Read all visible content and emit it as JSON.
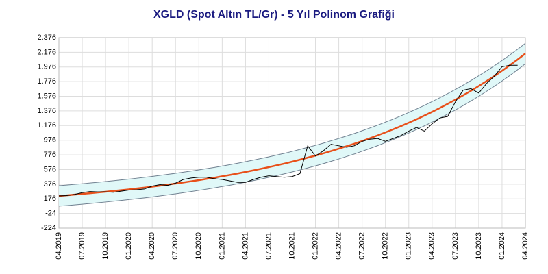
{
  "chart_data": {
    "type": "line",
    "title": "XGLD (Spot Altın TL/Gr) - 5 Yıl Polinom Grafiği",
    "x": [
      "2019-04",
      "2019-05",
      "2019-06",
      "2019-07",
      "2019-08",
      "2019-09",
      "2019-10",
      "2019-11",
      "2019-12",
      "2020-01",
      "2020-02",
      "2020-03",
      "2020-04",
      "2020-05",
      "2020-06",
      "2020-07",
      "2020-08",
      "2020-09",
      "2020-10",
      "2020-11",
      "2020-12",
      "2021-01",
      "2021-02",
      "2021-03",
      "2021-04",
      "2021-05",
      "2021-06",
      "2021-07",
      "2021-08",
      "2021-09",
      "2021-10",
      "2021-11",
      "2021-12",
      "2022-01",
      "2022-02",
      "2022-03",
      "2022-04",
      "2022-05",
      "2022-06",
      "2022-07",
      "2022-08",
      "2022-09",
      "2022-10",
      "2022-11",
      "2022-12",
      "2023-01",
      "2023-02",
      "2023-03",
      "2023-04",
      "2023-05",
      "2023-06",
      "2023-07",
      "2023-08",
      "2023-09",
      "2023-10",
      "2023-11",
      "2023-12",
      "2024-01",
      "2024-02",
      "2024-03",
      "2024-04"
    ],
    "series": [
      {
        "color": "#000000",
        "values": [
          215,
          220,
          235,
          260,
          275,
          270,
          270,
          265,
          280,
          295,
          300,
          310,
          350,
          370,
          360,
          390,
          440,
          460,
          470,
          470,
          450,
          440,
          420,
          400,
          400,
          440,
          470,
          490,
          480,
          470,
          480,
          520,
          900,
          760,
          830,
          920,
          900,
          880,
          900,
          960,
          990,
          1000,
          960,
          1000,
          1040,
          1100,
          1150,
          1100,
          1200,
          1280,
          1300,
          1500,
          1660,
          1680,
          1620,
          1750,
          1850,
          1980,
          2000,
          2000,
          null
        ]
      },
      {
        "color": "#e8501a",
        "values": [
          216,
          224,
          233,
          242,
          252,
          262,
          272,
          283,
          294,
          305,
          317,
          329,
          342,
          356,
          370,
          384,
          399,
          415,
          431,
          448,
          465,
          484,
          502,
          522,
          543,
          564,
          586,
          609,
          633,
          657,
          683,
          710,
          738,
          766,
          796,
          828,
          860,
          894,
          928,
          965,
          1003,
          1042,
          1083,
          1125,
          1169,
          1215,
          1262,
          1312,
          1363,
          1416,
          1472,
          1529,
          1589,
          1651,
          1716,
          1783,
          1852,
          1925,
          2000,
          2078,
          2160
        ]
      },
      {
        "color": "#708090",
        "values": [
          356,
          364,
          373,
          382,
          392,
          402,
          412,
          423,
          434,
          445,
          457,
          469,
          482,
          496,
          510,
          524,
          539,
          555,
          571,
          588,
          605,
          624,
          642,
          662,
          683,
          704,
          726,
          749,
          773,
          797,
          823,
          850,
          878,
          906,
          936,
          968,
          1000,
          1034,
          1068,
          1105,
          1143,
          1182,
          1223,
          1265,
          1309,
          1355,
          1402,
          1452,
          1503,
          1556,
          1612,
          1669,
          1729,
          1791,
          1856,
          1923,
          1992,
          2065,
          2140,
          2218,
          2300
        ]
      },
      {
        "color": "#708090",
        "values": [
          76,
          84,
          93,
          102,
          112,
          122,
          132,
          143,
          154,
          165,
          177,
          189,
          202,
          216,
          230,
          244,
          259,
          275,
          291,
          308,
          325,
          344,
          362,
          382,
          403,
          424,
          446,
          469,
          493,
          517,
          543,
          570,
          598,
          626,
          656,
          688,
          720,
          754,
          788,
          825,
          863,
          902,
          943,
          985,
          1029,
          1075,
          1122,
          1172,
          1223,
          1276,
          1332,
          1389,
          1449,
          1511,
          1576,
          1643,
          1712,
          1785,
          1860,
          1938,
          2020
        ]
      }
    ],
    "band_fill": "#e0f8f8",
    "xlim": [
      "2019-04",
      "2024-04"
    ],
    "xticks": [
      {
        "value": "2019-04",
        "label": "04.2019"
      },
      {
        "value": "2019-07",
        "label": "07.2019"
      },
      {
        "value": "2019-10",
        "label": "10.2019"
      },
      {
        "value": "2020-01",
        "label": "01.2020"
      },
      {
        "value": "2020-04",
        "label": "04.2020"
      },
      {
        "value": "2020-07",
        "label": "07.2020"
      },
      {
        "value": "2020-10",
        "label": "10.2020"
      },
      {
        "value": "2021-01",
        "label": "01.2021"
      },
      {
        "value": "2021-04",
        "label": "04.2021"
      },
      {
        "value": "2021-07",
        "label": "07.2021"
      },
      {
        "value": "2021-10",
        "label": "10.2021"
      },
      {
        "value": "2022-01",
        "label": "01.2022"
      },
      {
        "value": "2022-04",
        "label": "04.2022"
      },
      {
        "value": "2022-07",
        "label": "07.2022"
      },
      {
        "value": "2022-10",
        "label": "10.2022"
      },
      {
        "value": "2023-01",
        "label": "01.2023"
      },
      {
        "value": "2023-04",
        "label": "04.2023"
      },
      {
        "value": "2023-07",
        "label": "07.2023"
      },
      {
        "value": "2023-10",
        "label": "10.2023"
      },
      {
        "value": "2024-01",
        "label": "01.2024"
      },
      {
        "value": "2024-04",
        "label": "04.2024"
      }
    ],
    "ylim": [
      -224,
      2376
    ],
    "yticks": [
      -224,
      -24,
      176,
      376,
      576,
      776,
      976,
      {
        "value": 1176,
        "label": "1.176"
      },
      {
        "value": 1376,
        "label": "1.376"
      },
      {
        "value": 1576,
        "label": "1.576"
      },
      {
        "value": 1776,
        "label": "1.776"
      },
      {
        "value": 1976,
        "label": "1.976"
      },
      {
        "value": 2176,
        "label": "2.176"
      },
      {
        "value": 2376,
        "label": "2.376"
      }
    ],
    "grid": true
  }
}
